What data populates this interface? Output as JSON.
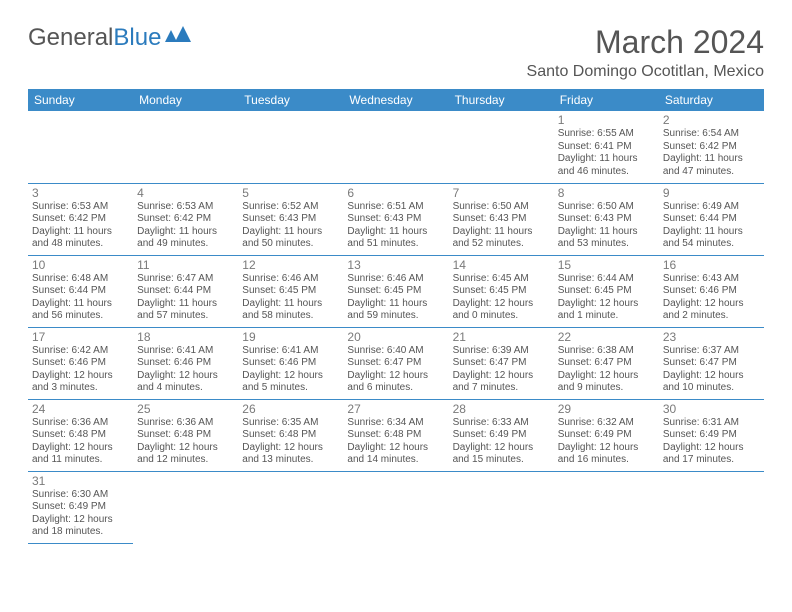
{
  "logo": {
    "text1": "General",
    "text2": "Blue"
  },
  "title": "March 2024",
  "location": "Santo Domingo Ocotitlan, Mexico",
  "colors": {
    "header_bg": "#3b8bc8",
    "header_fg": "#ffffff",
    "border": "#3b8bc8",
    "text": "#555555",
    "daynum": "#7a7a7a",
    "logo_gray": "#555555",
    "logo_blue": "#2b7bbd",
    "page_bg": "#ffffff"
  },
  "weekdays": [
    "Sunday",
    "Monday",
    "Tuesday",
    "Wednesday",
    "Thursday",
    "Friday",
    "Saturday"
  ],
  "grid": [
    [
      null,
      null,
      null,
      null,
      null,
      {
        "n": "1",
        "sr": "Sunrise: 6:55 AM",
        "ss": "Sunset: 6:41 PM",
        "dl1": "Daylight: 11 hours",
        "dl2": "and 46 minutes."
      },
      {
        "n": "2",
        "sr": "Sunrise: 6:54 AM",
        "ss": "Sunset: 6:42 PM",
        "dl1": "Daylight: 11 hours",
        "dl2": "and 47 minutes."
      }
    ],
    [
      {
        "n": "3",
        "sr": "Sunrise: 6:53 AM",
        "ss": "Sunset: 6:42 PM",
        "dl1": "Daylight: 11 hours",
        "dl2": "and 48 minutes."
      },
      {
        "n": "4",
        "sr": "Sunrise: 6:53 AM",
        "ss": "Sunset: 6:42 PM",
        "dl1": "Daylight: 11 hours",
        "dl2": "and 49 minutes."
      },
      {
        "n": "5",
        "sr": "Sunrise: 6:52 AM",
        "ss": "Sunset: 6:43 PM",
        "dl1": "Daylight: 11 hours",
        "dl2": "and 50 minutes."
      },
      {
        "n": "6",
        "sr": "Sunrise: 6:51 AM",
        "ss": "Sunset: 6:43 PM",
        "dl1": "Daylight: 11 hours",
        "dl2": "and 51 minutes."
      },
      {
        "n": "7",
        "sr": "Sunrise: 6:50 AM",
        "ss": "Sunset: 6:43 PM",
        "dl1": "Daylight: 11 hours",
        "dl2": "and 52 minutes."
      },
      {
        "n": "8",
        "sr": "Sunrise: 6:50 AM",
        "ss": "Sunset: 6:43 PM",
        "dl1": "Daylight: 11 hours",
        "dl2": "and 53 minutes."
      },
      {
        "n": "9",
        "sr": "Sunrise: 6:49 AM",
        "ss": "Sunset: 6:44 PM",
        "dl1": "Daylight: 11 hours",
        "dl2": "and 54 minutes."
      }
    ],
    [
      {
        "n": "10",
        "sr": "Sunrise: 6:48 AM",
        "ss": "Sunset: 6:44 PM",
        "dl1": "Daylight: 11 hours",
        "dl2": "and 56 minutes."
      },
      {
        "n": "11",
        "sr": "Sunrise: 6:47 AM",
        "ss": "Sunset: 6:44 PM",
        "dl1": "Daylight: 11 hours",
        "dl2": "and 57 minutes."
      },
      {
        "n": "12",
        "sr": "Sunrise: 6:46 AM",
        "ss": "Sunset: 6:45 PM",
        "dl1": "Daylight: 11 hours",
        "dl2": "and 58 minutes."
      },
      {
        "n": "13",
        "sr": "Sunrise: 6:46 AM",
        "ss": "Sunset: 6:45 PM",
        "dl1": "Daylight: 11 hours",
        "dl2": "and 59 minutes."
      },
      {
        "n": "14",
        "sr": "Sunrise: 6:45 AM",
        "ss": "Sunset: 6:45 PM",
        "dl1": "Daylight: 12 hours",
        "dl2": "and 0 minutes."
      },
      {
        "n": "15",
        "sr": "Sunrise: 6:44 AM",
        "ss": "Sunset: 6:45 PM",
        "dl1": "Daylight: 12 hours",
        "dl2": "and 1 minute."
      },
      {
        "n": "16",
        "sr": "Sunrise: 6:43 AM",
        "ss": "Sunset: 6:46 PM",
        "dl1": "Daylight: 12 hours",
        "dl2": "and 2 minutes."
      }
    ],
    [
      {
        "n": "17",
        "sr": "Sunrise: 6:42 AM",
        "ss": "Sunset: 6:46 PM",
        "dl1": "Daylight: 12 hours",
        "dl2": "and 3 minutes."
      },
      {
        "n": "18",
        "sr": "Sunrise: 6:41 AM",
        "ss": "Sunset: 6:46 PM",
        "dl1": "Daylight: 12 hours",
        "dl2": "and 4 minutes."
      },
      {
        "n": "19",
        "sr": "Sunrise: 6:41 AM",
        "ss": "Sunset: 6:46 PM",
        "dl1": "Daylight: 12 hours",
        "dl2": "and 5 minutes."
      },
      {
        "n": "20",
        "sr": "Sunrise: 6:40 AM",
        "ss": "Sunset: 6:47 PM",
        "dl1": "Daylight: 12 hours",
        "dl2": "and 6 minutes."
      },
      {
        "n": "21",
        "sr": "Sunrise: 6:39 AM",
        "ss": "Sunset: 6:47 PM",
        "dl1": "Daylight: 12 hours",
        "dl2": "and 7 minutes."
      },
      {
        "n": "22",
        "sr": "Sunrise: 6:38 AM",
        "ss": "Sunset: 6:47 PM",
        "dl1": "Daylight: 12 hours",
        "dl2": "and 9 minutes."
      },
      {
        "n": "23",
        "sr": "Sunrise: 6:37 AM",
        "ss": "Sunset: 6:47 PM",
        "dl1": "Daylight: 12 hours",
        "dl2": "and 10 minutes."
      }
    ],
    [
      {
        "n": "24",
        "sr": "Sunrise: 6:36 AM",
        "ss": "Sunset: 6:48 PM",
        "dl1": "Daylight: 12 hours",
        "dl2": "and 11 minutes."
      },
      {
        "n": "25",
        "sr": "Sunrise: 6:36 AM",
        "ss": "Sunset: 6:48 PM",
        "dl1": "Daylight: 12 hours",
        "dl2": "and 12 minutes."
      },
      {
        "n": "26",
        "sr": "Sunrise: 6:35 AM",
        "ss": "Sunset: 6:48 PM",
        "dl1": "Daylight: 12 hours",
        "dl2": "and 13 minutes."
      },
      {
        "n": "27",
        "sr": "Sunrise: 6:34 AM",
        "ss": "Sunset: 6:48 PM",
        "dl1": "Daylight: 12 hours",
        "dl2": "and 14 minutes."
      },
      {
        "n": "28",
        "sr": "Sunrise: 6:33 AM",
        "ss": "Sunset: 6:49 PM",
        "dl1": "Daylight: 12 hours",
        "dl2": "and 15 minutes."
      },
      {
        "n": "29",
        "sr": "Sunrise: 6:32 AM",
        "ss": "Sunset: 6:49 PM",
        "dl1": "Daylight: 12 hours",
        "dl2": "and 16 minutes."
      },
      {
        "n": "30",
        "sr": "Sunrise: 6:31 AM",
        "ss": "Sunset: 6:49 PM",
        "dl1": "Daylight: 12 hours",
        "dl2": "and 17 minutes."
      }
    ],
    [
      {
        "n": "31",
        "sr": "Sunrise: 6:30 AM",
        "ss": "Sunset: 6:49 PM",
        "dl1": "Daylight: 12 hours",
        "dl2": "and 18 minutes."
      },
      null,
      null,
      null,
      null,
      null,
      null
    ]
  ]
}
